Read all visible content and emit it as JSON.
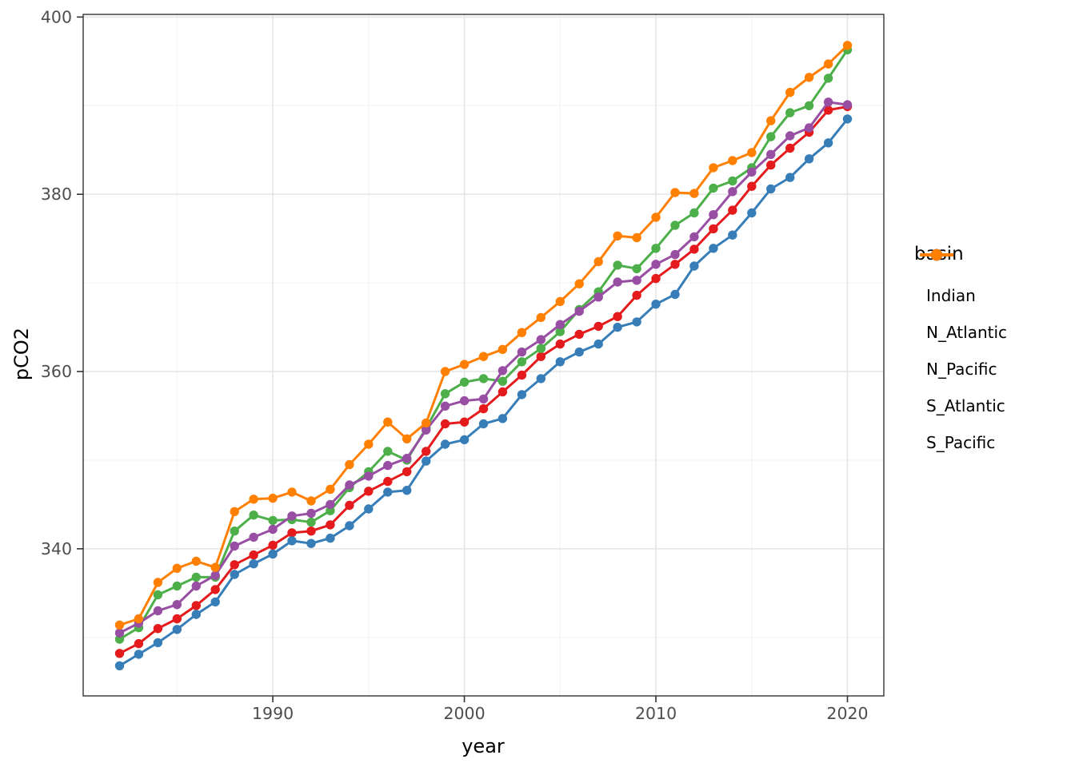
{
  "figure": {
    "background": "#ffffff",
    "panel_border_color": "#333333",
    "grid_major_color": "#e4e4e4",
    "grid_minor_color": "#f0f0f0",
    "tick_color": "#333333",
    "tick_label_color": "#4d4d4d"
  },
  "chart_data": {
    "type": "line",
    "title": "",
    "xlabel": "year",
    "ylabel": "pCO2",
    "legend_title": "basin",
    "legend_position": "right",
    "grid": true,
    "marker": "circle",
    "xlim": [
      1980.1,
      2021.9
    ],
    "ylim": [
      323.4,
      400.3
    ],
    "x_major_ticks": [
      1990,
      2000,
      2010,
      2020
    ],
    "x_minor_ticks": [
      1985,
      1995,
      2005,
      2015
    ],
    "y_major_ticks": [
      340,
      360,
      380,
      400
    ],
    "y_minor_ticks": [
      330,
      350,
      370,
      390
    ],
    "x": [
      1982,
      1983,
      1984,
      1985,
      1986,
      1987,
      1988,
      1989,
      1990,
      1991,
      1992,
      1993,
      1994,
      1995,
      1996,
      1997,
      1998,
      1999,
      2000,
      2001,
      2002,
      2003,
      2004,
      2005,
      2006,
      2007,
      2008,
      2009,
      2010,
      2011,
      2012,
      2013,
      2014,
      2015,
      2016,
      2017,
      2018,
      2019,
      2020
    ],
    "series": [
      {
        "name": "Indian",
        "color": "#E41A1C",
        "values": [
          328.2,
          329.3,
          331.0,
          332.1,
          333.6,
          335.4,
          338.2,
          339.3,
          340.4,
          341.8,
          342.0,
          342.7,
          344.9,
          346.5,
          347.6,
          348.7,
          351.0,
          354.1,
          354.3,
          355.8,
          357.7,
          359.6,
          361.7,
          363.1,
          364.2,
          365.1,
          366.2,
          368.6,
          370.5,
          372.1,
          373.8,
          376.1,
          378.2,
          380.9,
          383.3,
          385.2,
          387.0,
          389.5,
          389.9
        ]
      },
      {
        "name": "N_Atlantic",
        "color": "#377EB8",
        "values": [
          326.8,
          328.1,
          329.4,
          330.9,
          332.6,
          334.0,
          337.1,
          338.3,
          339.4,
          340.9,
          340.6,
          341.2,
          342.6,
          344.5,
          346.4,
          346.6,
          349.9,
          351.8,
          352.3,
          354.1,
          354.7,
          357.4,
          359.2,
          361.1,
          362.2,
          363.1,
          365.0,
          365.6,
          367.6,
          368.7,
          371.9,
          373.9,
          375.4,
          377.9,
          380.6,
          381.9,
          384.0,
          385.8,
          388.5
        ]
      },
      {
        "name": "N_Pacific",
        "color": "#4DAF4A",
        "values": [
          329.8,
          331.1,
          334.8,
          335.8,
          336.8,
          336.8,
          342.0,
          343.8,
          343.2,
          343.3,
          343.0,
          344.3,
          346.9,
          348.7,
          351.0,
          350.0,
          353.6,
          357.5,
          358.8,
          359.2,
          358.9,
          361.1,
          362.6,
          364.5,
          367.0,
          369.0,
          372.0,
          371.6,
          373.9,
          376.5,
          377.9,
          380.7,
          381.5,
          383.0,
          386.5,
          389.2,
          390.0,
          393.1,
          396.3
        ]
      },
      {
        "name": "S_Atlantic",
        "color": "#984EA3",
        "values": [
          330.5,
          331.6,
          333.0,
          333.7,
          335.8,
          337.0,
          340.3,
          341.3,
          342.2,
          343.7,
          344.0,
          345.0,
          347.2,
          348.2,
          349.4,
          350.2,
          353.4,
          356.1,
          356.7,
          356.9,
          360.1,
          362.2,
          363.6,
          365.3,
          366.8,
          368.4,
          370.1,
          370.3,
          372.1,
          373.2,
          375.2,
          377.7,
          380.3,
          382.5,
          384.5,
          386.6,
          387.5,
          390.4,
          390.1
        ]
      },
      {
        "name": "S_Pacific",
        "color": "#FF7F00",
        "values": [
          331.4,
          332.1,
          336.2,
          337.8,
          338.6,
          337.9,
          344.2,
          345.6,
          345.7,
          346.4,
          345.4,
          346.7,
          349.5,
          351.8,
          354.3,
          352.4,
          354.2,
          360.0,
          360.8,
          361.7,
          362.5,
          364.4,
          366.1,
          367.9,
          369.9,
          372.4,
          375.3,
          375.1,
          377.4,
          380.2,
          380.1,
          383.0,
          383.8,
          384.7,
          388.3,
          391.5,
          393.2,
          394.7,
          396.8
        ]
      }
    ]
  },
  "legend": {
    "title": "basin",
    "entries": [
      {
        "label": "Indian",
        "color": "#E41A1C"
      },
      {
        "label": "N_Atlantic",
        "color": "#377EB8"
      },
      {
        "label": "N_Pacific",
        "color": "#4DAF4A"
      },
      {
        "label": "S_Atlantic",
        "color": "#984EA3"
      },
      {
        "label": "S_Pacific",
        "color": "#FF7F00"
      }
    ]
  }
}
